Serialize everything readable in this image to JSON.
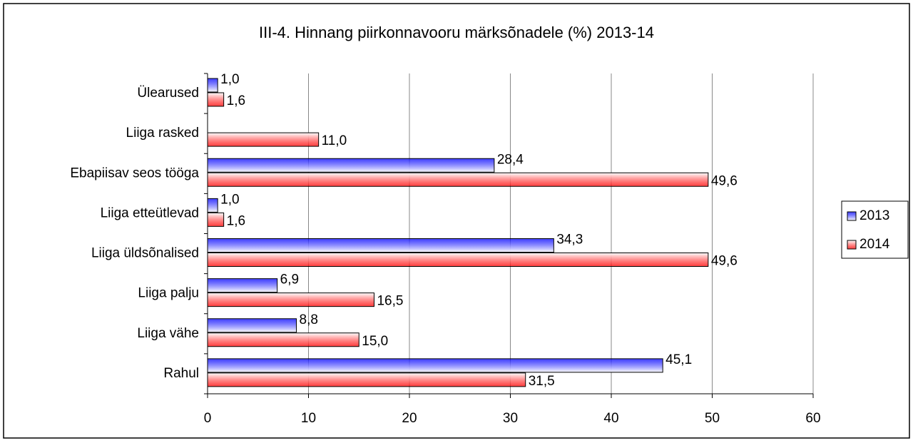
{
  "chart_data": {
    "type": "bar",
    "orientation": "horizontal",
    "title": "III-4. Hinnang piirkonnavooru märksõnadele (%) 2013-14",
    "categories": [
      "Ülearused",
      "Liiga rasked",
      "Ebapiisav seos tööga",
      "Liiga etteütlevad",
      "Liiga üldsõnalised",
      "Liiga palju",
      "Liiga vähe",
      "Rahul"
    ],
    "series": [
      {
        "name": "2013",
        "color": "#0000ff",
        "values": [
          1.0,
          null,
          28.4,
          1.0,
          34.3,
          6.9,
          8.8,
          45.1
        ],
        "value_labels": [
          "1,0",
          null,
          "28,4",
          "1,0",
          "34,3",
          "6,9",
          "8,8",
          "45,1"
        ]
      },
      {
        "name": "2014",
        "color": "#ff0000",
        "values": [
          1.6,
          11.0,
          49.6,
          1.6,
          49.6,
          16.5,
          15.0,
          31.5
        ],
        "value_labels": [
          "1,6",
          "11,0",
          "49,6",
          "1,6",
          "49,6",
          "16,5",
          "15,0",
          "31,5"
        ]
      }
    ],
    "xlim": [
      0,
      60
    ],
    "xticks": [
      0,
      10,
      20,
      30,
      40,
      50,
      60
    ],
    "grid": true,
    "legend": "right"
  }
}
